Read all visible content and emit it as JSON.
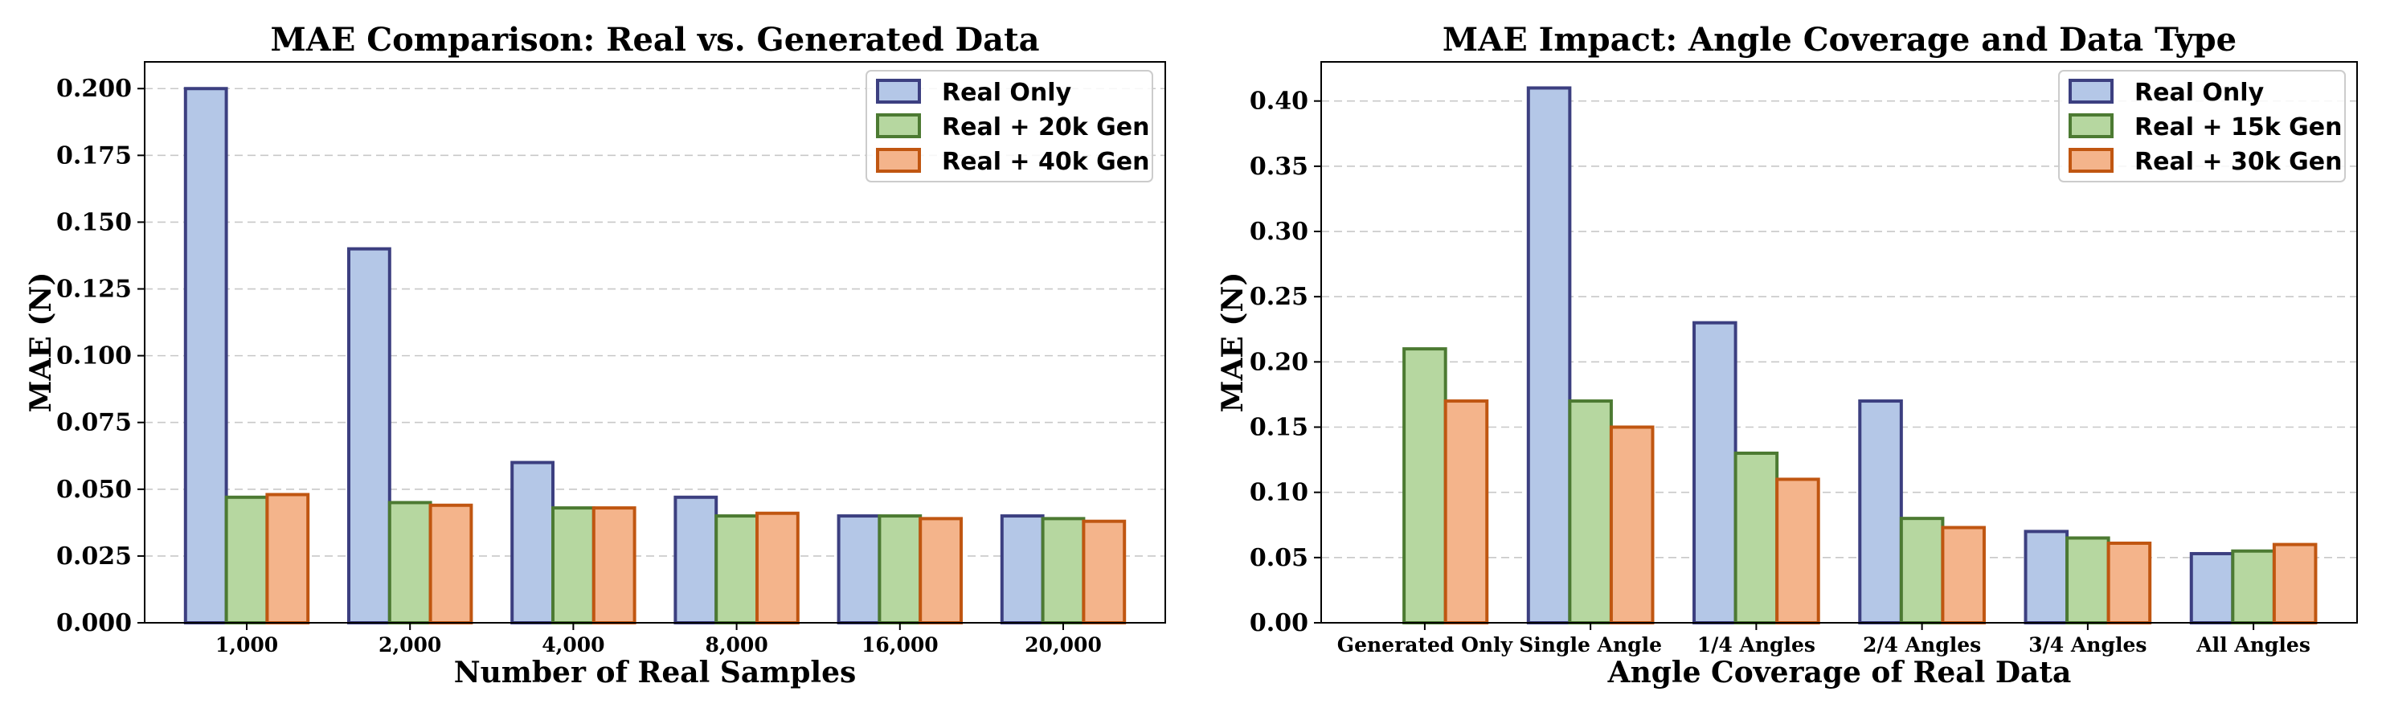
{
  "chart_data": [
    {
      "type": "bar",
      "title": "MAE Comparison: Real vs. Generated Data",
      "xlabel": "Number of Real Samples",
      "ylabel": "MAE (N)",
      "categories": [
        "1,000",
        "2,000",
        "4,000",
        "8,000",
        "16,000",
        "20,000"
      ],
      "ylim": [
        0,
        0.21
      ],
      "yticks": [
        0.0,
        0.025,
        0.05,
        0.075,
        0.1,
        0.125,
        0.15,
        0.175,
        0.2
      ],
      "ytick_labels": [
        "0.000",
        "0.025",
        "0.050",
        "0.075",
        "0.100",
        "0.125",
        "0.150",
        "0.175",
        "0.200"
      ],
      "grid": true,
      "legend_position": "top-right",
      "series": [
        {
          "name": "Real Only",
          "fill": "#b4c7e7",
          "edge": "#3c3f80",
          "values": [
            0.2,
            0.14,
            0.06,
            0.047,
            0.04,
            0.04
          ]
        },
        {
          "name": "Real + 20k Gen",
          "fill": "#b6d7a0",
          "edge": "#4c7a32",
          "values": [
            0.047,
            0.045,
            0.043,
            0.04,
            0.04,
            0.039
          ]
        },
        {
          "name": "Real + 40k Gen",
          "fill": "#f4b48b",
          "edge": "#c05611",
          "values": [
            0.048,
            0.044,
            0.043,
            0.041,
            0.039,
            0.038
          ]
        }
      ]
    },
    {
      "type": "bar",
      "title": "MAE Impact: Angle Coverage and Data Type",
      "xlabel": "Angle Coverage of Real Data",
      "ylabel": "MAE (N)",
      "categories": [
        "Generated Only",
        "Single Angle",
        "1/4 Angles",
        "2/4 Angles",
        "3/4 Angles",
        "All Angles"
      ],
      "ylim": [
        0,
        0.43
      ],
      "yticks": [
        0.0,
        0.05,
        0.1,
        0.15,
        0.2,
        0.25,
        0.3,
        0.35,
        0.4
      ],
      "ytick_labels": [
        "0.00",
        "0.05",
        "0.10",
        "0.15",
        "0.20",
        "0.25",
        "0.30",
        "0.35",
        "0.40"
      ],
      "grid": true,
      "legend_position": "top-right",
      "series": [
        {
          "name": "Real Only",
          "fill": "#b4c7e7",
          "edge": "#3c3f80",
          "values": [
            null,
            0.41,
            0.23,
            0.17,
            0.07,
            0.053
          ]
        },
        {
          "name": "Real + 15k Gen",
          "fill": "#b6d7a0",
          "edge": "#4c7a32",
          "values": [
            0.21,
            0.17,
            0.13,
            0.08,
            0.065,
            0.055
          ]
        },
        {
          "name": "Real + 30k Gen",
          "fill": "#f4b48b",
          "edge": "#c05611",
          "values": [
            0.17,
            0.15,
            0.11,
            0.073,
            0.061,
            0.06
          ]
        }
      ]
    }
  ]
}
